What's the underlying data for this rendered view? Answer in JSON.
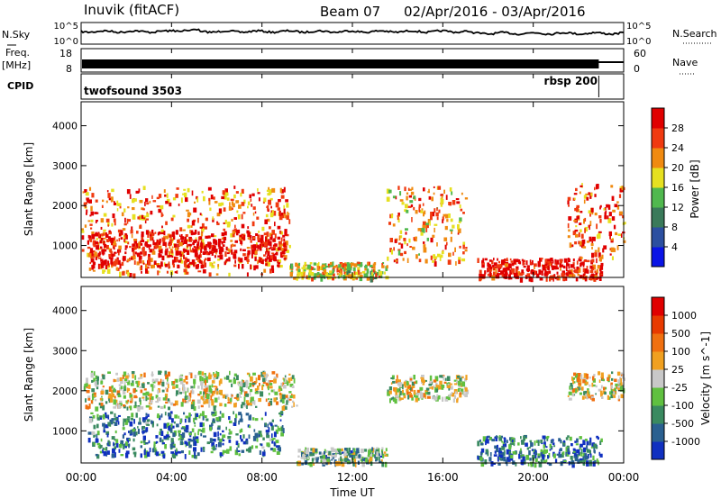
{
  "header": {
    "station": "Inuvik (fitACF)",
    "beam": "Beam 07",
    "date_range": "02/Apr/2016 - 03/Apr/2016"
  },
  "summary": {
    "nsky_label": "N.Sky",
    "nsky_ticks": [
      "10^5",
      "10^0"
    ],
    "nsearch_label": "N.Search",
    "nsearch_ticks": [
      "10^5",
      "10^0"
    ],
    "freq_label": "Freq.",
    "freq_unit": "[MHz]",
    "freq_ticks": [
      "18",
      "8"
    ],
    "nave_label": "Nave",
    "nave_ticks": [
      "60",
      "0"
    ],
    "cpid_label": "CPID",
    "cpid_modes": [
      {
        "name": "twofsound 3503",
        "start_hour": 0,
        "end_hour": 22.9
      },
      {
        "name": "rbsp 200",
        "start_hour": 22.9,
        "end_hour": 24
      }
    ]
  },
  "chart_data": [
    {
      "type": "heatmap",
      "name": "power",
      "ylabel": "Slant Range [km]",
      "y_ticks": [
        "1000",
        "2000",
        "3000",
        "4000"
      ],
      "ylim": [
        200,
        4600
      ],
      "xlim": [
        0,
        24
      ],
      "colorbar_label": "Power [dB]",
      "colorbar_ticks": [
        "4",
        "8",
        "12",
        "16",
        "20",
        "24",
        "28"
      ],
      "colorbar_range": [
        0,
        32
      ],
      "colors": [
        "#0a14e6",
        "#2c4fa0",
        "#3a7a5a",
        "#50b84e",
        "#e6e020",
        "#f08a10",
        "#f03a10",
        "#e00000"
      ],
      "echo_regions": [
        {
          "t0": 0.0,
          "t1": 9.2,
          "r0": 300,
          "r1": 2500,
          "level": 0.75
        },
        {
          "t0": 0.3,
          "t1": 9.0,
          "r0": 500,
          "r1": 1400,
          "level": 0.95
        },
        {
          "t0": 9.2,
          "t1": 13.5,
          "r0": 200,
          "r1": 600,
          "level": 0.6
        },
        {
          "t0": 13.5,
          "t1": 17.0,
          "r0": 600,
          "r1": 2500,
          "level": 0.7
        },
        {
          "t0": 17.5,
          "t1": 23.0,
          "r0": 200,
          "r1": 700,
          "level": 0.95
        },
        {
          "t0": 21.5,
          "t1": 24.0,
          "r0": 700,
          "r1": 2600,
          "level": 0.8
        }
      ]
    },
    {
      "type": "heatmap",
      "name": "velocity",
      "ylabel": "Slant Range [km]",
      "y_ticks": [
        "1000",
        "2000",
        "3000",
        "4000"
      ],
      "ylim": [
        200,
        4600
      ],
      "xlim": [
        0,
        24
      ],
      "colorbar_label": "Velocity [m s^-1]",
      "colorbar_ticks": [
        "1000",
        "500",
        "100",
        "25",
        "-25",
        "-100",
        "-500",
        "-1000"
      ],
      "colorbar_range": [
        -1000,
        1000
      ],
      "colors": [
        "#1030c0",
        "#2a6090",
        "#3a8a60",
        "#60c040",
        "#c8c8c8",
        "#f0a020",
        "#f07010",
        "#e83a00",
        "#e00000"
      ],
      "echo_regions": [
        {
          "t0": 0.0,
          "t1": 9.5,
          "r0": 1600,
          "r1": 2500,
          "level": 0.5
        },
        {
          "t0": 0.3,
          "t1": 9.0,
          "r0": 400,
          "r1": 1500,
          "level": 0.2
        },
        {
          "t0": 9.5,
          "t1": 13.5,
          "r0": 200,
          "r1": 600,
          "level": 0.35
        },
        {
          "t0": 13.5,
          "t1": 17.0,
          "r0": 1800,
          "r1": 2400,
          "level": 0.5
        },
        {
          "t0": 17.5,
          "t1": 23.0,
          "r0": 200,
          "r1": 900,
          "level": 0.2
        },
        {
          "t0": 21.5,
          "t1": 24.0,
          "r0": 1800,
          "r1": 2500,
          "level": 0.5
        }
      ]
    }
  ],
  "x_axis": {
    "label": "Time UT",
    "ticks": [
      "00:00",
      "04:00",
      "08:00",
      "12:00",
      "16:00",
      "20:00",
      "00:00"
    ],
    "tick_hours": [
      0,
      4,
      8,
      12,
      16,
      20,
      24
    ]
  }
}
